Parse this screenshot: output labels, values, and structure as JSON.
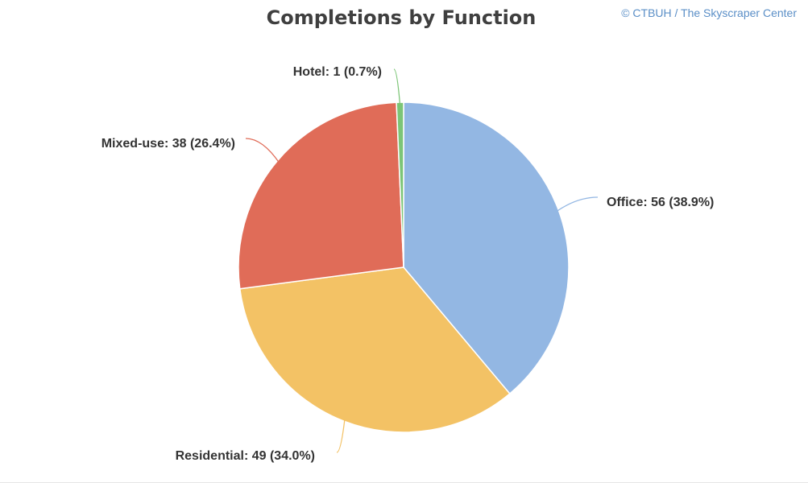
{
  "header": {
    "title": "Completions by Function",
    "credit": "© CTBUH / The Skyscraper Center"
  },
  "chart_data": {
    "type": "pie",
    "title": "Completions by Function",
    "start_angle_deg": 0,
    "direction": "clockwise",
    "slices": [
      {
        "name": "Office",
        "value": 56,
        "percent": 38.9,
        "color": "#93b7e3",
        "label": "Office: 56 (38.9%)"
      },
      {
        "name": "Residential",
        "value": 49,
        "percent": 34.0,
        "color": "#f3c265",
        "label": "Residential: 49 (34.0%)"
      },
      {
        "name": "Mixed-use",
        "value": 38,
        "percent": 26.4,
        "color": "#e06c58",
        "label": "Mixed-use: 38 (26.4%)"
      },
      {
        "name": "Hotel",
        "value": 1,
        "percent": 0.7,
        "color": "#7cc576",
        "label": "Hotel: 1 (0.7%)"
      }
    ]
  }
}
